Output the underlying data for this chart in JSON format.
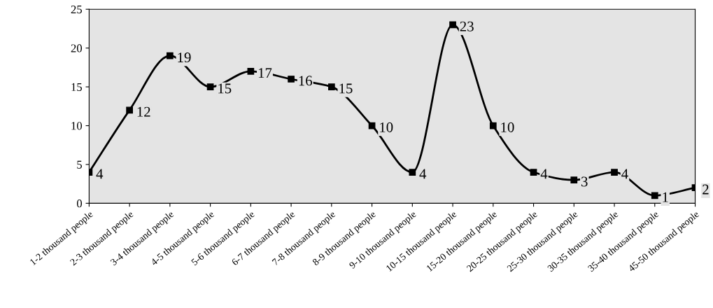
{
  "chart_data": {
    "type": "line",
    "categories": [
      "1-2 thousand people",
      "2-3 thousand people",
      "3-4 thousand people",
      "4-5 thousand people",
      "5-6 thousand people",
      "6-7 thousand people",
      "7-8 thousand people",
      "8-9 thousand people",
      "9-10 thousand people",
      "10-15 thousand people",
      "15-20 thousand people",
      "20-25 thousand people",
      "25-30 thousand people",
      "30-35 thousand people",
      "35-40 thousand people",
      "45-50 thousand people"
    ],
    "series": [
      {
        "color": "#000000",
        "values": [
          4,
          12,
          19,
          15,
          17,
          16,
          15,
          10,
          4,
          23,
          10,
          4,
          3,
          4,
          1,
          2
        ]
      }
    ],
    "ylim": [
      0,
      25
    ],
    "yticks": [
      0,
      5,
      10,
      15,
      20,
      25
    ],
    "marker": "square",
    "line_style": "solid",
    "grid": false,
    "legend": false,
    "data_labels": true
  }
}
